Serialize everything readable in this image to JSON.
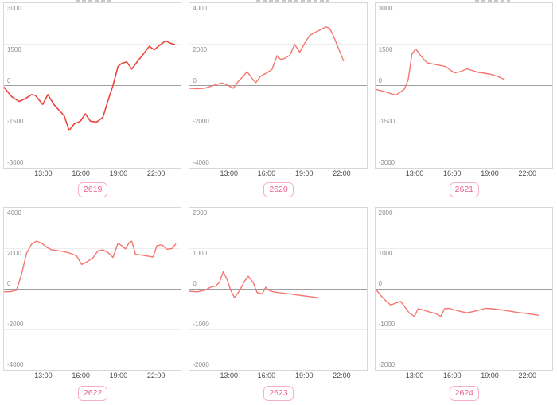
{
  "theme": {
    "page_bg": "#ffffff",
    "box_border": "#d8d8d8",
    "grid_color": "#ededed",
    "zero_line": "#9e9e9e",
    "ytick_color": "#8e8e8e",
    "xtick_color": "#4a4a4a",
    "badge_border": "#f6b2c3",
    "badge_text": "#ec5f8a",
    "badge_bg": "#ffffff",
    "accent_red": "#ee443c",
    "accent_salmon": "#f4766e"
  },
  "chart_data": [
    {
      "type": "line",
      "label": "2619",
      "title": "2619",
      "ylim": [
        -3000,
        3000
      ],
      "yticks": [
        3000,
        1500,
        0,
        -1500,
        -3000
      ],
      "xlim": [
        9.8,
        23.9
      ],
      "xticks": [
        "13:00",
        "16:00",
        "19:00",
        "22:00"
      ],
      "xtick_hours": [
        13,
        16,
        19,
        22
      ],
      "line_color": "#ee443c",
      "line_width": 1.6,
      "x": [
        9.8,
        10.4,
        11.0,
        11.5,
        12.0,
        12.3,
        12.9,
        13.3,
        13.8,
        14.2,
        14.6,
        15.0,
        15.4,
        15.9,
        16.3,
        16.7,
        17.2,
        17.7,
        18.1,
        18.5,
        18.9,
        19.2,
        19.6,
        20.0,
        20.5,
        20.9,
        21.4,
        21.8,
        22.2,
        22.7,
        23.1,
        23.4
      ],
      "y": [
        -60,
        -400,
        -580,
        -480,
        -330,
        -360,
        -690,
        -330,
        -700,
        -900,
        -1100,
        -1630,
        -1400,
        -1300,
        -1030,
        -1300,
        -1330,
        -1150,
        -550,
        0,
        700,
        810,
        860,
        600,
        910,
        1130,
        1430,
        1300,
        1460,
        1630,
        1540,
        1500
      ]
    },
    {
      "type": "line",
      "label": "2620",
      "title": "2620",
      "ylim": [
        -4000,
        4000
      ],
      "yticks": [
        4000,
        2000,
        0,
        -2000,
        -4000
      ],
      "xlim": [
        9.8,
        23.9
      ],
      "xticks": [
        "13:00",
        "16:00",
        "19:00",
        "22:00"
      ],
      "xtick_hours": [
        13,
        16,
        19,
        22
      ],
      "line_color": "#f4766e",
      "line_width": 1.4,
      "x": [
        9.8,
        10.4,
        11.0,
        11.5,
        12.0,
        12.4,
        12.8,
        13.3,
        13.7,
        14.1,
        14.4,
        14.8,
        15.1,
        15.5,
        16.0,
        16.4,
        16.8,
        17.1,
        17.4,
        17.8,
        18.2,
        18.6,
        19.0,
        19.4,
        19.9,
        20.3,
        20.7,
        21.0,
        21.3,
        21.7,
        22.1
      ],
      "y": [
        -130,
        -160,
        -130,
        -40,
        60,
        120,
        30,
        -130,
        200,
        450,
        680,
        350,
        140,
        460,
        620,
        790,
        1450,
        1260,
        1320,
        1460,
        2000,
        1620,
        2060,
        2430,
        2600,
        2720,
        2850,
        2780,
        2400,
        1800,
        1200
      ]
    },
    {
      "type": "line",
      "label": "2621",
      "title": "2621",
      "ylim": [
        -3000,
        3000
      ],
      "yticks": [
        3000,
        1500,
        0,
        -1500,
        -3000
      ],
      "xlim": [
        9.8,
        23.9
      ],
      "xticks": [
        "13:00",
        "16:00",
        "19:00",
        "22:00"
      ],
      "xtick_hours": [
        13,
        16,
        19,
        22
      ],
      "line_color": "#f4766e",
      "line_width": 1.4,
      "x": [
        9.8,
        10.4,
        11.0,
        11.4,
        11.8,
        12.1,
        12.4,
        12.7,
        13.0,
        13.4,
        13.9,
        14.4,
        14.9,
        15.4,
        15.8,
        16.1,
        16.6,
        17.1,
        17.5,
        18.0,
        18.5,
        19.0,
        19.5,
        19.9,
        20.1
      ],
      "y": [
        -140,
        -210,
        -290,
        -350,
        -230,
        -130,
        200,
        1150,
        1330,
        1090,
        830,
        780,
        740,
        690,
        550,
        460,
        510,
        610,
        550,
        480,
        450,
        410,
        340,
        260,
        210
      ]
    },
    {
      "type": "line",
      "label": "2622",
      "title": "2622",
      "ylim": [
        -4000,
        4000
      ],
      "yticks": [
        4000,
        2000,
        0,
        -2000,
        -4000
      ],
      "xlim": [
        9.8,
        23.9
      ],
      "xticks": [
        "13:00",
        "16:00",
        "19:00",
        "22:00"
      ],
      "xtick_hours": [
        13,
        16,
        19,
        22
      ],
      "line_color": "#f4766e",
      "line_width": 1.4,
      "x": [
        9.8,
        10.3,
        10.8,
        11.2,
        11.6,
        12.0,
        12.4,
        12.8,
        13.2,
        13.6,
        14.1,
        14.6,
        15.1,
        15.6,
        16.0,
        16.4,
        16.9,
        17.3,
        17.7,
        18.1,
        18.5,
        18.9,
        19.2,
        19.5,
        19.8,
        20.0,
        20.3,
        20.8,
        21.3,
        21.7,
        22.0,
        22.4,
        22.8,
        23.2,
        23.5
      ],
      "y": [
        -150,
        -140,
        -80,
        700,
        1750,
        2200,
        2350,
        2250,
        2050,
        1920,
        1880,
        1830,
        1750,
        1620,
        1200,
        1320,
        1530,
        1870,
        1920,
        1790,
        1550,
        2250,
        2120,
        1970,
        2280,
        2350,
        1700,
        1660,
        1610,
        1570,
        2120,
        2170,
        1950,
        1980,
        2200
      ]
    },
    {
      "type": "line",
      "label": "2623",
      "title": "2623",
      "ylim": [
        -2000,
        2000
      ],
      "yticks": [
        2000,
        1000,
        0,
        -1000,
        -2000
      ],
      "xlim": [
        9.8,
        23.9
      ],
      "xticks": [
        "13:00",
        "16:00",
        "19:00",
        "22:00"
      ],
      "xtick_hours": [
        13,
        16,
        19,
        22
      ],
      "line_color": "#f4766e",
      "line_width": 1.4,
      "x": [
        9.8,
        10.4,
        11.0,
        11.5,
        11.9,
        12.2,
        12.5,
        12.8,
        13.1,
        13.4,
        13.8,
        14.2,
        14.5,
        14.9,
        15.2,
        15.6,
        15.9,
        16.2,
        16.6,
        17.1,
        17.6,
        18.1,
        18.6,
        19.1,
        19.6,
        20.1
      ],
      "y": [
        -60,
        -75,
        -40,
        40,
        70,
        160,
        420,
        240,
        -40,
        -220,
        -50,
        190,
        310,
        150,
        -90,
        -130,
        40,
        -50,
        -80,
        -100,
        -120,
        -140,
        -160,
        -180,
        -200,
        -220
      ]
    },
    {
      "type": "line",
      "label": "2624",
      "title": "2624",
      "ylim": [
        -2000,
        2000
      ],
      "yticks": [
        2000,
        1000,
        0,
        -1000,
        -2000
      ],
      "xlim": [
        9.8,
        23.9
      ],
      "xticks": [
        "13:00",
        "16:00",
        "19:00",
        "22:00"
      ],
      "xtick_hours": [
        13,
        16,
        19,
        22
      ],
      "line_color": "#f4766e",
      "line_width": 1.4,
      "x": [
        9.8,
        10.2,
        10.6,
        11.0,
        11.4,
        11.8,
        12.1,
        12.5,
        12.9,
        13.2,
        13.6,
        14.1,
        14.6,
        15.0,
        15.3,
        15.7,
        16.1,
        16.6,
        17.1,
        17.6,
        18.1,
        18.6,
        19.1,
        19.6,
        20.1,
        20.6,
        21.1,
        21.6,
        22.1,
        22.5,
        22.8
      ],
      "y": [
        -10,
        -160,
        -290,
        -400,
        -350,
        -310,
        -430,
        -600,
        -680,
        -490,
        -520,
        -570,
        -610,
        -680,
        -490,
        -480,
        -520,
        -560,
        -590,
        -560,
        -520,
        -480,
        -490,
        -510,
        -530,
        -555,
        -580,
        -600,
        -620,
        -640,
        -650
      ]
    }
  ]
}
